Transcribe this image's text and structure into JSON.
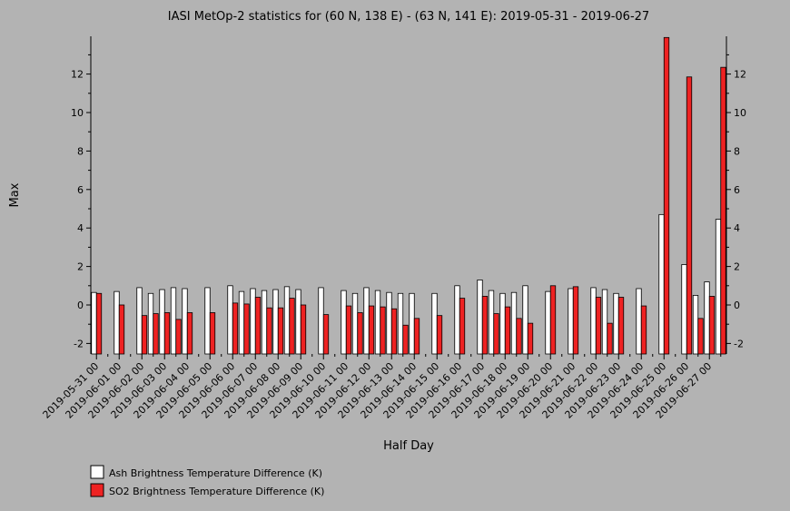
{
  "chart_data": {
    "type": "bar",
    "title": "IASI MetOp-2 statistics for (60 N, 138 E) - (63 N, 141 E): 2019-05-31 - 2019-06-27",
    "xlabel": "Half Day",
    "ylabel": "Max",
    "ylim": [
      -2.5,
      14
    ],
    "yticks": [
      -2,
      0,
      2,
      4,
      6,
      8,
      10,
      12
    ],
    "grid": false,
    "legend_position": "bottom-left",
    "colors": {
      "ash": "#ffffff",
      "so2": "#ee2222",
      "background": "#b3b3b3"
    },
    "x": [
      "2019-05-31 00",
      "2019-05-31 12",
      "2019-06-01 00",
      "2019-06-01 12",
      "2019-06-02 00",
      "2019-06-02 12",
      "2019-06-03 00",
      "2019-06-03 12",
      "2019-06-04 00",
      "2019-06-04 12",
      "2019-06-05 00",
      "2019-06-05 12",
      "2019-06-06 00",
      "2019-06-06 12",
      "2019-06-07 00",
      "2019-06-07 12",
      "2019-06-08 00",
      "2019-06-08 12",
      "2019-06-09 00",
      "2019-06-09 12",
      "2019-06-10 00",
      "2019-06-10 12",
      "2019-06-11 00",
      "2019-06-11 12",
      "2019-06-12 00",
      "2019-06-12 12",
      "2019-06-13 00",
      "2019-06-13 12",
      "2019-06-14 00",
      "2019-06-14 12",
      "2019-06-15 00",
      "2019-06-15 12",
      "2019-06-16 00",
      "2019-06-16 12",
      "2019-06-17 00",
      "2019-06-17 12",
      "2019-06-18 00",
      "2019-06-18 12",
      "2019-06-19 00",
      "2019-06-19 12",
      "2019-06-20 00",
      "2019-06-20 12",
      "2019-06-21 00",
      "2019-06-21 12",
      "2019-06-22 00",
      "2019-06-22 12",
      "2019-06-23 00",
      "2019-06-23 12",
      "2019-06-24 00",
      "2019-06-24 12",
      "2019-06-25 00",
      "2019-06-25 12",
      "2019-06-26 00",
      "2019-06-26 12",
      "2019-06-27 00",
      "2019-06-27 12"
    ],
    "xtick_labels": [
      "2019-05-31 00",
      "2019-06-01 00",
      "2019-06-02 00",
      "2019-06-03 00",
      "2019-06-04 00",
      "2019-06-05 00",
      "2019-06-06 00",
      "2019-06-07 00",
      "2019-06-08 00",
      "2019-06-09 00",
      "2019-06-10 00",
      "2019-06-11 00",
      "2019-06-12 00",
      "2019-06-13 00",
      "2019-06-14 00",
      "2019-06-15 00",
      "2019-06-16 00",
      "2019-06-17 00",
      "2019-06-18 00",
      "2019-06-19 00",
      "2019-06-20 00",
      "2019-06-21 00",
      "2019-06-22 00",
      "2019-06-23 00",
      "2019-06-24 00",
      "2019-06-25 00",
      "2019-06-26 00",
      "2019-06-27 00"
    ],
    "series": [
      {
        "name": "Ash Brightness Temperature Difference (K)",
        "values": [
          0.65,
          null,
          0.7,
          null,
          0.9,
          0.6,
          0.8,
          0.9,
          0.85,
          null,
          0.9,
          null,
          1.0,
          0.7,
          0.85,
          0.75,
          0.8,
          0.95,
          0.8,
          null,
          0.9,
          null,
          0.75,
          0.6,
          0.9,
          0.75,
          0.65,
          0.6,
          0.6,
          null,
          0.6,
          null,
          1.0,
          null,
          1.3,
          0.75,
          0.6,
          0.65,
          1.0,
          null,
          0.7,
          null,
          0.85,
          null,
          0.9,
          0.8,
          0.6,
          null,
          0.85,
          null,
          4.7,
          null,
          2.1,
          0.5,
          1.2,
          4.45
        ]
      },
      {
        "name": "SO2 Brightness Temperature Difference (K)",
        "values": [
          0.6,
          null,
          0.0,
          null,
          -0.55,
          -0.45,
          -0.4,
          -0.75,
          -0.4,
          null,
          -0.4,
          null,
          0.1,
          0.05,
          0.4,
          -0.15,
          -0.15,
          0.35,
          0.0,
          null,
          -0.5,
          null,
          -0.05,
          -0.4,
          -0.05,
          -0.1,
          -0.2,
          -1.05,
          -0.7,
          null,
          -0.55,
          null,
          0.35,
          null,
          0.45,
          -0.45,
          -0.1,
          -0.7,
          -0.95,
          null,
          1.0,
          null,
          0.95,
          null,
          0.4,
          -0.95,
          0.4,
          null,
          -0.05,
          null,
          13.9,
          null,
          11.85,
          -0.7,
          0.45,
          12.35
        ]
      }
    ]
  }
}
